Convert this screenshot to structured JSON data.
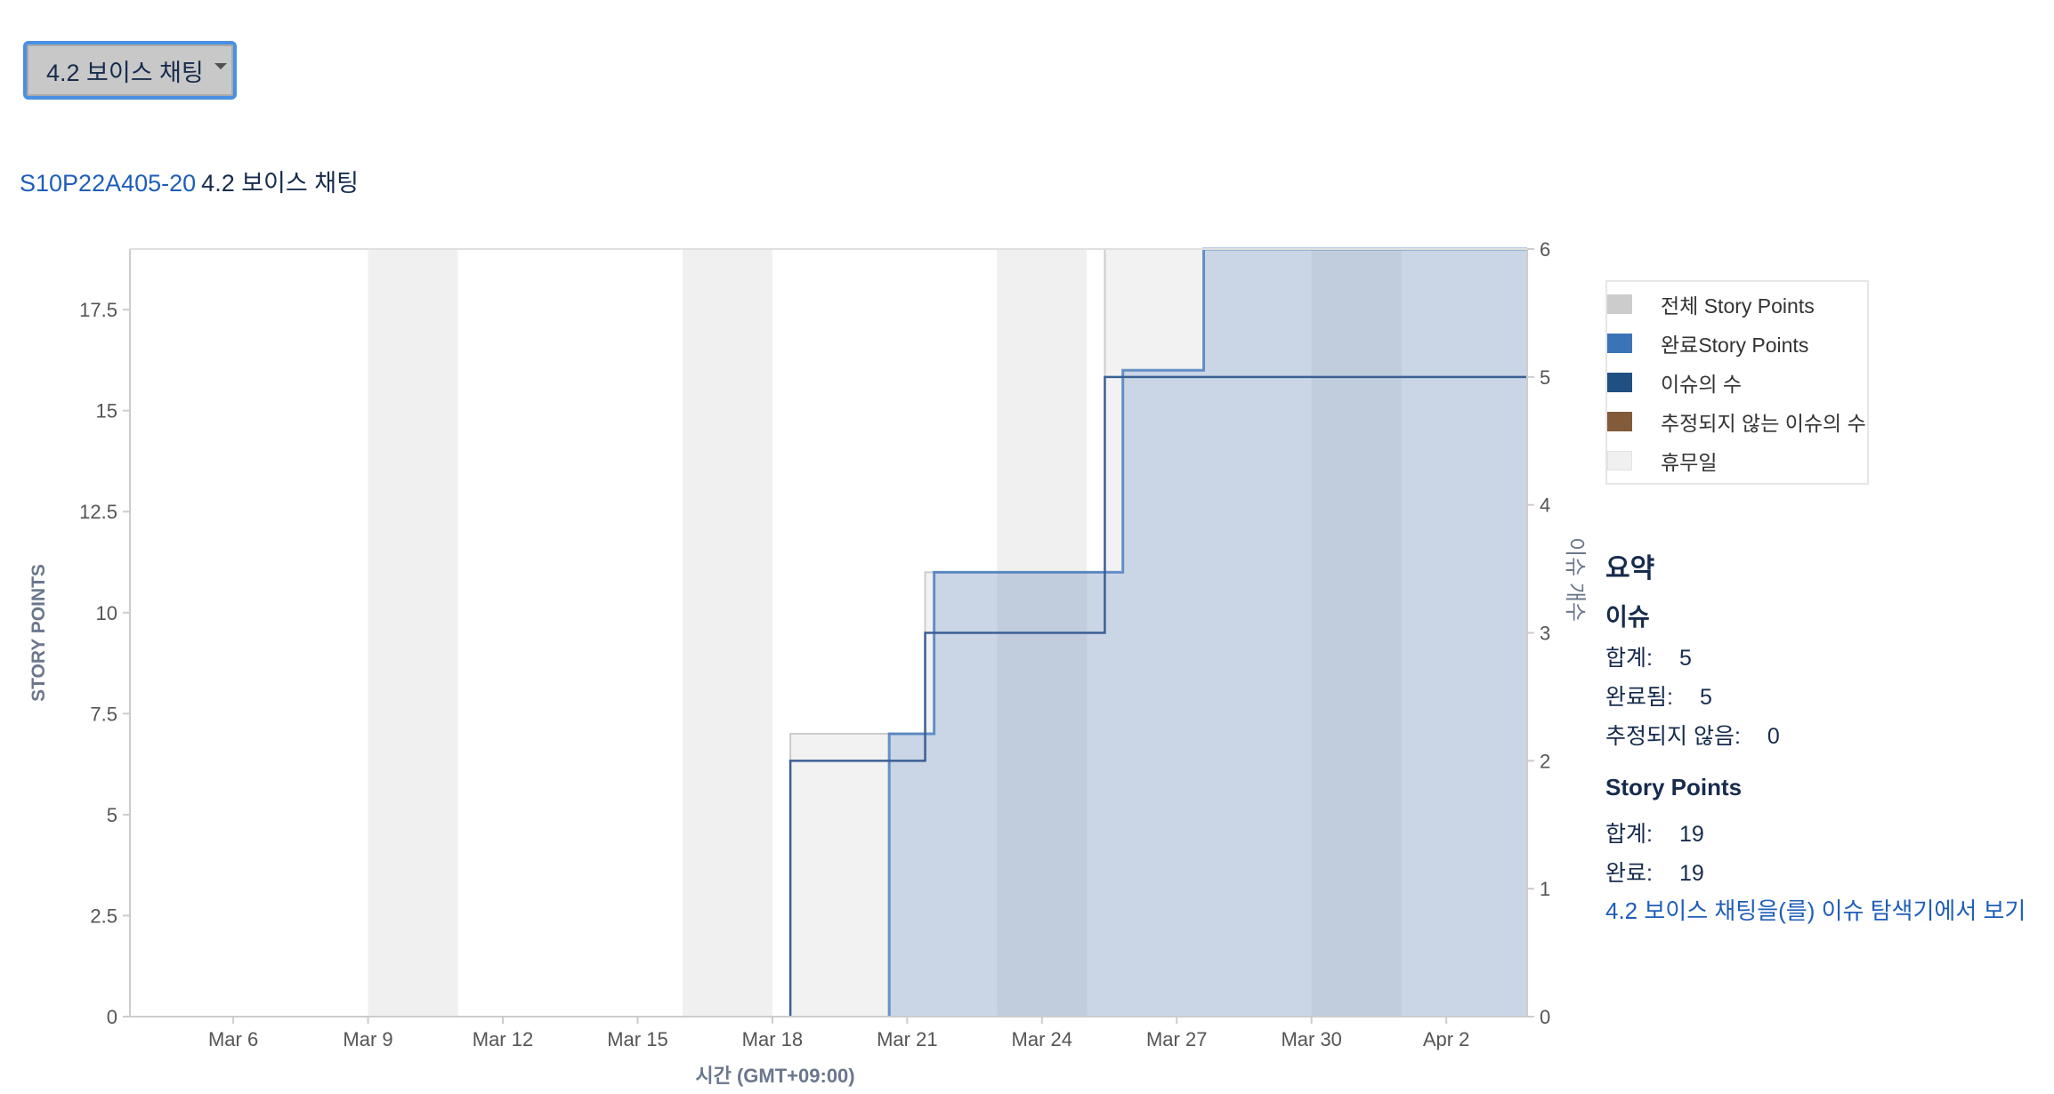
{
  "version_selector": {
    "label": "4.2 보이스 채팅"
  },
  "breadcrumb": {
    "issue_key": "S10P22A405-20",
    "version_name": "4.2 보이스 채팅"
  },
  "chart_data": {
    "type": "area",
    "xlabel": "시간 (GMT+09:00)",
    "ylabel_left": "STORY POINTS",
    "ylabel_right": "이슈 개수",
    "x_ticks": [
      "Mar 6",
      "Mar 9",
      "Mar 12",
      "Mar 15",
      "Mar 18",
      "Mar 21",
      "Mar 24",
      "Mar 27",
      "Mar 30",
      "Apr 2"
    ],
    "xlim": [
      "Mar 3.7",
      "Apr 3.8"
    ],
    "y_left_ticks": [
      "0",
      "2.5",
      "5",
      "7.5",
      "10",
      "12.5",
      "15",
      "17.5"
    ],
    "ylim_left": [
      0,
      19
    ],
    "y_right_ticks": [
      "0",
      "1",
      "2",
      "3",
      "4",
      "5",
      "6"
    ],
    "ylim_right": [
      0,
      6
    ],
    "non_working_days": [
      [
        "Mar 9",
        "Mar 11"
      ],
      [
        "Mar 16",
        "Mar 18"
      ],
      [
        "Mar 23",
        "Mar 25"
      ],
      [
        "Mar 30",
        "Apr 1"
      ]
    ],
    "series": [
      {
        "name": "전체 Story Points",
        "axis": "left",
        "color": "#cccccc",
        "steps": [
          [
            "Mar 18.4",
            7
          ],
          [
            "Mar 21.4",
            11
          ],
          [
            "Mar 25.4",
            19
          ],
          [
            "Apr 3.8",
            19
          ]
        ]
      },
      {
        "name": "완료Story Points",
        "axis": "left",
        "color": "#3b73b9",
        "steps": [
          [
            "Mar 20.6",
            7
          ],
          [
            "Mar 21.6",
            11
          ],
          [
            "Mar 25.8",
            16
          ],
          [
            "Mar 27.6",
            19
          ],
          [
            "Apr 3.8",
            19
          ]
        ]
      },
      {
        "name": "이슈의 수",
        "axis": "right",
        "color": "#205081",
        "steps": [
          [
            "Mar 18.4",
            2
          ],
          [
            "Mar 21.4",
            3
          ],
          [
            "Mar 25.4",
            5
          ],
          [
            "Apr 3.8",
            5
          ]
        ]
      },
      {
        "name": "추정되지 않는 이슈의 수",
        "axis": "right",
        "color": "#815b3a",
        "steps": []
      }
    ],
    "legend": {
      "placement": "right",
      "items": [
        {
          "label": "전체 Story Points",
          "color": "#cccccc"
        },
        {
          "label": "완료Story Points",
          "color": "#3b73b9"
        },
        {
          "label": "이슈의 수",
          "color": "#205081"
        },
        {
          "label": "추정되지 않는 이슈의 수",
          "color": "#815b3a"
        },
        {
          "label": "휴무일",
          "color": "#f0f0f0"
        }
      ]
    }
  },
  "summary": {
    "title": "요약",
    "issues_heading": "이슈",
    "issues_total_label": "합계:",
    "issues_total": "5",
    "issues_done_label": "완료됨:",
    "issues_done": "5",
    "issues_unestimated_label": "추정되지 않음:",
    "issues_unestimated": "0",
    "sp_heading": "Story Points",
    "sp_total_label": "합계:",
    "sp_total": "19",
    "sp_done_label": "완료:",
    "sp_done": "19",
    "explorer_link": "4.2 보이스 채팅을(를) 이슈 탐색기에서 보기"
  }
}
